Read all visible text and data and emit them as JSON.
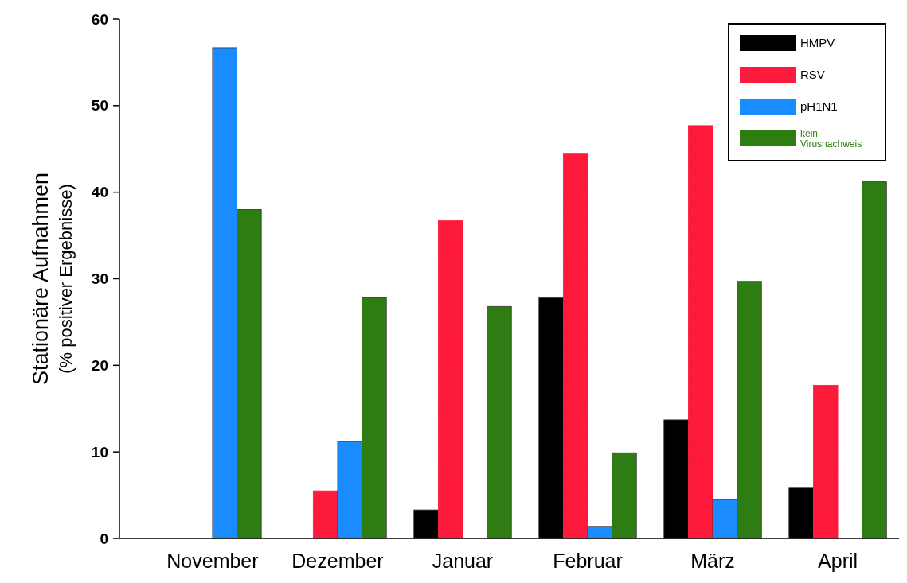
{
  "chart_data": {
    "type": "bar",
    "ylabel": "Stationäre Aufnahmen\n(% positiver Ergebnisse)",
    "categories": [
      "November",
      "Dezember",
      "Januar",
      "Februar",
      "März",
      "April"
    ],
    "series": [
      {
        "name": "HMPV",
        "color": "#000000",
        "values": [
          0,
          0,
          3.3,
          27.8,
          13.7,
          5.9
        ]
      },
      {
        "name": "RSV",
        "color": "#ff1a3c",
        "values": [
          0,
          5.5,
          36.7,
          44.5,
          47.7,
          17.7
        ]
      },
      {
        "name": "pH1N1",
        "color": "#1a8cff",
        "values": [
          56.7,
          11.2,
          0,
          1.4,
          4.5,
          0
        ]
      },
      {
        "name": "kein Virusnachweis",
        "color": "#2e7d12",
        "values": [
          38,
          27.8,
          26.8,
          9.9,
          29.7,
          41.2
        ]
      }
    ],
    "ylim": [
      0,
      60
    ],
    "yticks": [
      0,
      10,
      20,
      30,
      40,
      50,
      60
    ],
    "grid": false,
    "legend": "top right"
  }
}
